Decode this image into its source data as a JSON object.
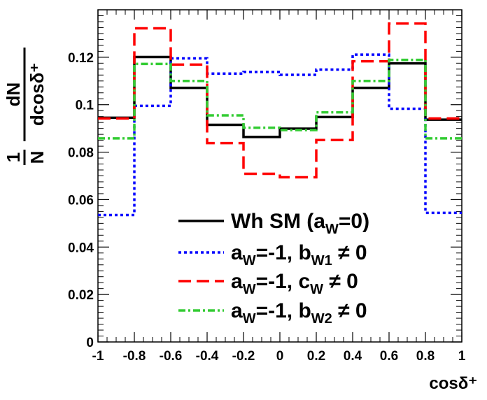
{
  "chart_data": {
    "type": "line",
    "step": true,
    "xlabel": "cosδ⁺",
    "ylabel": {
      "numerator_1": "1",
      "denominator_1": "N",
      "numerator_2": "dN",
      "denominator_2": "dcosδ⁺"
    },
    "xlim": [
      -1,
      1
    ],
    "ylim": [
      0,
      0.14
    ],
    "x_ticks": [
      -1,
      -0.8,
      -0.6,
      -0.4,
      -0.2,
      0,
      0.2,
      0.4,
      0.6,
      0.8,
      1
    ],
    "x_tick_labels": [
      "-1",
      "-0.8",
      "-0.6",
      "-0.4",
      "-0.2",
      "0",
      "0.2",
      "0.4",
      "0.6",
      "0.8",
      "1"
    ],
    "y_ticks": [
      0,
      0.02,
      0.04,
      0.06,
      0.08,
      0.1,
      0.12
    ],
    "y_tick_labels": [
      "0",
      "0.02",
      "0.04",
      "0.06",
      "0.08",
      "0.1",
      "0.12"
    ],
    "bin_edges": [
      -1,
      -0.8,
      -0.6,
      -0.4,
      -0.2,
      0,
      0.2,
      0.4,
      0.6,
      0.8,
      1
    ],
    "series": [
      {
        "name": "Wh SM (a_W=0)",
        "color": "#000000",
        "dash": "solid",
        "values": [
          0.0945,
          0.1201,
          0.1071,
          0.0915,
          0.0864,
          0.0899,
          0.0948,
          0.1071,
          0.1174,
          0.0937
        ]
      },
      {
        "name": "a_W=-1, b_W1 ≠ 0",
        "color": "#0000ff",
        "dash": "dotted",
        "values": [
          0.0535,
          0.0995,
          0.1195,
          0.1131,
          0.1138,
          0.1126,
          0.1148,
          0.1211,
          0.0983,
          0.0544
        ]
      },
      {
        "name": "a_W=-1, c_W ≠ 0",
        "color": "#ff0000",
        "dash": "dashed",
        "values": [
          0.0942,
          0.1322,
          0.1169,
          0.0838,
          0.0709,
          0.0694,
          0.0851,
          0.1183,
          0.1342,
          0.0942
        ]
      },
      {
        "name": "a_W=-1, b_W2 ≠ 0",
        "color": "#33cc33",
        "dash": "dashdot",
        "values": [
          0.0858,
          0.1172,
          0.11,
          0.0955,
          0.0903,
          0.0893,
          0.0968,
          0.11,
          0.1189,
          0.0858
        ]
      }
    ],
    "legend": [
      {
        "main": "Wh SM (a",
        "sub": "W",
        "rest": "=0)"
      },
      {
        "p1": "a",
        "s1": "W",
        "p2": "=-1, b",
        "s2": "W1",
        "p3": " ≠ 0"
      },
      {
        "p1": "a",
        "s1": "W",
        "p2": "=-1, c",
        "s2": "W",
        "p3": " ≠ 0"
      },
      {
        "p1": "a",
        "s1": "W",
        "p2": "=-1, b",
        "s2": "W2",
        "p3": " ≠ 0"
      }
    ],
    "legend_position": "bottom-center",
    "grid": false
  }
}
